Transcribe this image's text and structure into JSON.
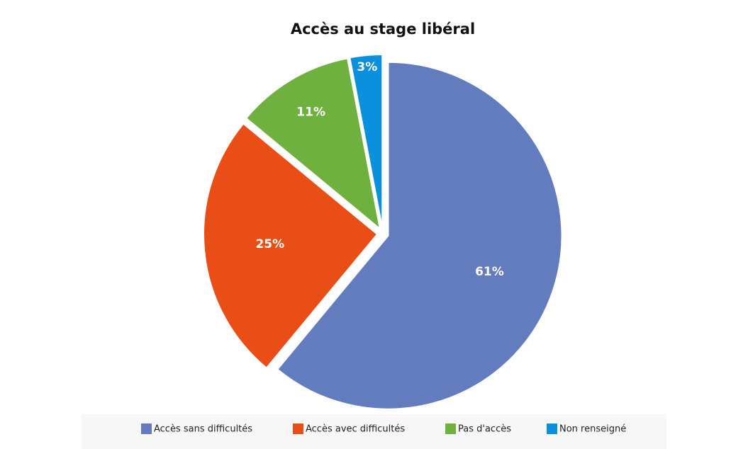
{
  "chart_data": {
    "type": "pie",
    "title": "Accès au stage libéral",
    "categories": [
      "Accès sans difficultés",
      "Accès avec difficultés",
      "Pas d'accès",
      "Non renseigné"
    ],
    "values": [
      61,
      25,
      11,
      3
    ],
    "value_labels": [
      "61%",
      "25%",
      "11%",
      "3%"
    ],
    "colors": [
      "#627cbd",
      "#e84e16",
      "#6eb13f",
      "#0a90dd"
    ]
  }
}
